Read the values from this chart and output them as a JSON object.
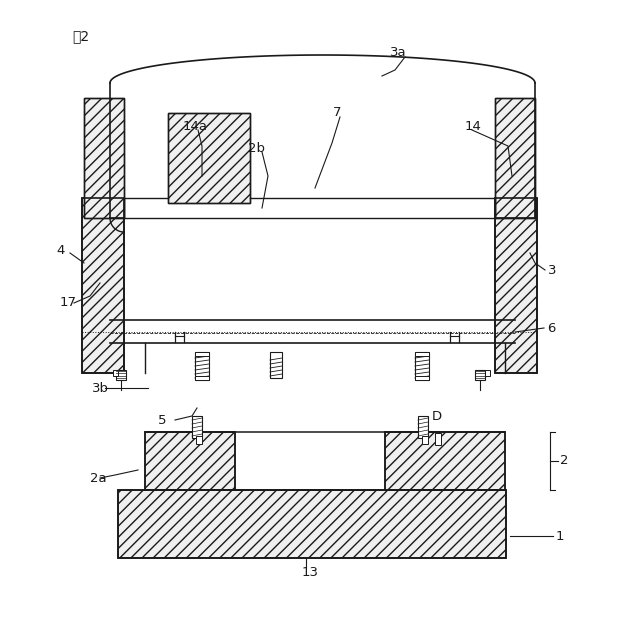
{
  "bg_color": "#ffffff",
  "line_color": "#1a1a1a",
  "labels": {
    "fig": "図2",
    "1": "1",
    "2": "2",
    "2a": "2a",
    "2b": "2b",
    "3": "3",
    "3a": "3a",
    "3b": "3b",
    "4": "4",
    "5": "5",
    "6": "6",
    "7": "7",
    "13": "13",
    "14": "14",
    "14a": "14a",
    "17": "17",
    "D": "D"
  }
}
